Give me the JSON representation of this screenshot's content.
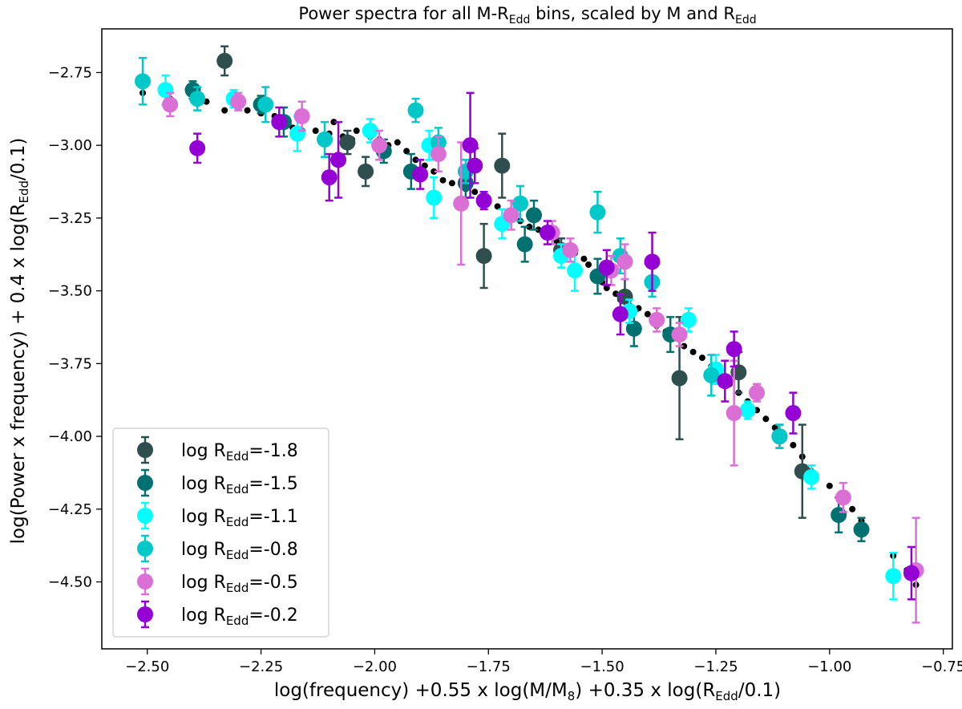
{
  "chart_data": {
    "type": "scatter",
    "title": {
      "main": "Power spectra for all M-R",
      "sub1": "Edd",
      "mid": " bins, scaled by M and R",
      "sub2": "Edd"
    },
    "xlabel": {
      "pre": "log(frequency) +0.55 x log(M/M",
      "sub1": "8",
      "mid": ") +0.35 x log(R",
      "sub2": "Edd",
      "post": "/0.1)"
    },
    "ylabel": {
      "pre": "log(Power x frequency) + 0.4 x log(R",
      "sub": "Edd",
      "post": "/0.1)"
    },
    "xlim": [
      -2.6,
      -0.73
    ],
    "ylim": [
      -4.73,
      -2.6
    ],
    "xticks": [
      -2.5,
      -2.25,
      -2.0,
      -1.75,
      -1.5,
      -1.25,
      -1.0,
      -0.75
    ],
    "xtick_labels": [
      "−2.50",
      "−2.25",
      "−2.00",
      "−1.75",
      "−1.50",
      "−1.25",
      "−1.00",
      "−0.75"
    ],
    "yticks": [
      -2.75,
      -3.0,
      -3.25,
      -3.5,
      -3.75,
      -4.0,
      -4.25,
      -4.5
    ],
    "ytick_labels": [
      "−2.75",
      "−3.00",
      "−3.25",
      "−3.50",
      "−3.75",
      "−4.00",
      "−4.25",
      "−4.50"
    ],
    "legend_position": "lower-left",
    "series": [
      {
        "name": "log REdd=-1.8",
        "label_pre": "log R",
        "label_sub": "Edd",
        "label_post": "=-1.8",
        "color": "#2f4f4f",
        "points": [
          [
            -2.33,
            -2.71,
            0.05
          ],
          [
            -2.06,
            -2.99,
            0.04
          ],
          [
            -2.02,
            -3.09,
            0.05
          ],
          [
            -1.76,
            -3.38,
            0.11
          ],
          [
            -1.72,
            -3.07,
            0.11
          ],
          [
            -1.59,
            -3.36,
            0.04
          ],
          [
            -1.45,
            -3.52,
            0.06
          ],
          [
            -1.33,
            -3.8,
            0.21
          ],
          [
            -1.2,
            -3.78,
            0.07
          ],
          [
            -1.06,
            -4.12,
            0.16
          ]
        ]
      },
      {
        "name": "log REdd=-1.5",
        "label_pre": "log R",
        "label_sub": "Edd",
        "label_post": "=-1.5",
        "color": "#007070",
        "points": [
          [
            -2.4,
            -2.81,
            0.03
          ],
          [
            -2.25,
            -2.86,
            0.03
          ],
          [
            -2.2,
            -2.92,
            0.05
          ],
          [
            -1.98,
            -3.02,
            0.04
          ],
          [
            -1.92,
            -3.09,
            0.06
          ],
          [
            -1.8,
            -3.13,
            0.05
          ],
          [
            -1.65,
            -3.24,
            0.05
          ],
          [
            -1.67,
            -3.34,
            0.06
          ],
          [
            -1.51,
            -3.45,
            0.06
          ],
          [
            -1.43,
            -3.63,
            0.06
          ],
          [
            -1.35,
            -3.65,
            0.06
          ],
          [
            -1.11,
            -4.0,
            0.04
          ],
          [
            -0.98,
            -4.27,
            0.06
          ],
          [
            -0.93,
            -4.32,
            0.04
          ]
        ]
      },
      {
        "name": "log REdd=-1.1",
        "label_pre": "log R",
        "label_sub": "Edd",
        "label_post": "=-1.1",
        "color": "#00ffff",
        "points": [
          [
            -2.46,
            -2.81,
            0.05
          ],
          [
            -2.31,
            -2.84,
            0.03
          ],
          [
            -2.17,
            -2.96,
            0.06
          ],
          [
            -2.01,
            -2.95,
            0.04
          ],
          [
            -1.88,
            -3.0,
            0.05
          ],
          [
            -1.87,
            -3.18,
            0.07
          ],
          [
            -1.72,
            -3.27,
            0.05
          ],
          [
            -1.59,
            -3.38,
            0.04
          ],
          [
            -1.56,
            -3.43,
            0.07
          ],
          [
            -1.44,
            -3.57,
            0.04
          ],
          [
            -1.31,
            -3.6,
            0.04
          ],
          [
            -1.25,
            -3.77,
            0.05
          ],
          [
            -1.18,
            -3.91,
            0.03
          ],
          [
            -1.04,
            -4.14,
            0.04
          ],
          [
            -0.86,
            -4.48,
            0.08
          ]
        ]
      },
      {
        "name": "log REdd=-0.8",
        "label_pre": "log R",
        "label_sub": "Edd",
        "label_post": "=-0.8",
        "color": "#00c8c8",
        "points": [
          [
            -2.51,
            -2.78,
            0.08
          ],
          [
            -2.39,
            -2.84,
            0.04
          ],
          [
            -2.24,
            -2.86,
            0.06
          ],
          [
            -2.11,
            -2.98,
            0.06
          ],
          [
            -1.91,
            -2.88,
            0.04
          ],
          [
            -1.86,
            -2.99,
            0.05
          ],
          [
            -1.8,
            -3.09,
            0.04
          ],
          [
            -1.68,
            -3.2,
            0.06
          ],
          [
            -1.51,
            -3.23,
            0.07
          ],
          [
            -1.46,
            -3.38,
            0.06
          ],
          [
            -1.39,
            -3.47,
            0.05
          ],
          [
            -1.26,
            -3.79,
            0.07
          ],
          [
            -1.11,
            -4.0,
            0.04
          ]
        ]
      },
      {
        "name": "log REdd=-0.5",
        "label_pre": "log R",
        "label_sub": "Edd",
        "label_post": "=-0.5",
        "color": "#da70d6",
        "points": [
          [
            -2.45,
            -2.86,
            0.04
          ],
          [
            -2.3,
            -2.85,
            0.03
          ],
          [
            -2.16,
            -2.9,
            0.05
          ],
          [
            -1.99,
            -3.0,
            0.05
          ],
          [
            -1.86,
            -3.03,
            0.06
          ],
          [
            -1.81,
            -3.2,
            0.21
          ],
          [
            -1.7,
            -3.24,
            0.05
          ],
          [
            -1.61,
            -3.3,
            0.04
          ],
          [
            -1.57,
            -3.36,
            0.04
          ],
          [
            -1.48,
            -3.43,
            0.05
          ],
          [
            -1.45,
            -3.4,
            0.06
          ],
          [
            -1.38,
            -3.6,
            0.04
          ],
          [
            -1.33,
            -3.65,
            0.04
          ],
          [
            -1.21,
            -3.92,
            0.18
          ],
          [
            -1.16,
            -3.85,
            0.03
          ],
          [
            -0.97,
            -4.21,
            0.05
          ],
          [
            -0.81,
            -4.46,
            0.18
          ]
        ]
      },
      {
        "name": "log REdd=-0.2",
        "label_pre": "log R",
        "label_sub": "Edd",
        "label_post": "=-0.2",
        "color": "#9400d3",
        "points": [
          [
            -2.39,
            -3.01,
            0.05
          ],
          [
            -2.21,
            -2.92,
            0.05
          ],
          [
            -2.08,
            -3.05,
            0.13
          ],
          [
            -2.1,
            -3.11,
            0.08
          ],
          [
            -1.9,
            -3.1,
            0.05
          ],
          [
            -1.79,
            -3.0,
            0.18
          ],
          [
            -1.78,
            -3.07,
            0.06
          ],
          [
            -1.76,
            -3.19,
            0.03
          ],
          [
            -1.62,
            -3.3,
            0.04
          ],
          [
            -1.49,
            -3.42,
            0.06
          ],
          [
            -1.46,
            -3.58,
            0.07
          ],
          [
            -1.39,
            -3.4,
            0.1
          ],
          [
            -1.23,
            -3.81,
            0.07
          ],
          [
            -1.21,
            -3.7,
            0.06
          ],
          [
            -1.08,
            -3.92,
            0.07
          ],
          [
            -0.82,
            -4.47,
            0.09
          ]
        ]
      }
    ],
    "model_points": [
      [
        -2.51,
        -2.82
      ],
      [
        -2.46,
        -2.82
      ],
      [
        -2.45,
        -2.84
      ],
      [
        -2.39,
        -2.83
      ],
      [
        -2.39,
        -2.85
      ],
      [
        -2.37,
        -2.85
      ],
      [
        -2.33,
        -2.88
      ],
      [
        -2.3,
        -2.87
      ],
      [
        -2.28,
        -2.88
      ],
      [
        -2.25,
        -2.89
      ],
      [
        -2.22,
        -2.9
      ],
      [
        -2.21,
        -2.91
      ],
      [
        -2.19,
        -2.93
      ],
      [
        -2.18,
        -2.94
      ],
      [
        -2.16,
        -2.95
      ],
      [
        -2.13,
        -2.95
      ],
      [
        -2.1,
        -2.96
      ],
      [
        -2.09,
        -2.92
      ],
      [
        -2.07,
        -2.97
      ],
      [
        -2.05,
        -2.98
      ],
      [
        -2.04,
        -2.95
      ],
      [
        -2.01,
        -2.97
      ],
      [
        -1.99,
        -2.98
      ],
      [
        -1.97,
        -3.0
      ],
      [
        -1.95,
        -2.99
      ],
      [
        -1.93,
        -3.02
      ],
      [
        -1.91,
        -3.05
      ],
      [
        -1.89,
        -3.07
      ],
      [
        -1.87,
        -3.09
      ],
      [
        -1.85,
        -3.12
      ],
      [
        -1.83,
        -3.13
      ],
      [
        -1.8,
        -3.15
      ],
      [
        -1.78,
        -3.16
      ],
      [
        -1.76,
        -3.19
      ],
      [
        -1.73,
        -3.21
      ],
      [
        -1.7,
        -3.24
      ],
      [
        -1.68,
        -3.26
      ],
      [
        -1.66,
        -3.28
      ],
      [
        -1.64,
        -3.29
      ],
      [
        -1.62,
        -3.31
      ],
      [
        -1.6,
        -3.33
      ],
      [
        -1.58,
        -3.35
      ],
      [
        -1.56,
        -3.37
      ],
      [
        -1.54,
        -3.39
      ],
      [
        -1.53,
        -3.41
      ],
      [
        -1.51,
        -3.44
      ],
      [
        -1.5,
        -3.47
      ],
      [
        -1.49,
        -3.49
      ],
      [
        -1.47,
        -3.51
      ],
      [
        -1.46,
        -3.53
      ],
      [
        -1.44,
        -3.55
      ],
      [
        -1.42,
        -3.56
      ],
      [
        -1.4,
        -3.58
      ],
      [
        -1.38,
        -3.62
      ],
      [
        -1.36,
        -3.64
      ],
      [
        -1.34,
        -3.66
      ],
      [
        -1.32,
        -3.69
      ],
      [
        -1.3,
        -3.71
      ],
      [
        -1.28,
        -3.73
      ],
      [
        -1.26,
        -3.76
      ],
      [
        -1.24,
        -3.79
      ],
      [
        -1.22,
        -3.82
      ],
      [
        -1.2,
        -3.85
      ],
      [
        -1.18,
        -3.88
      ],
      [
        -1.16,
        -3.91
      ],
      [
        -1.14,
        -3.94
      ],
      [
        -1.12,
        -3.97
      ],
      [
        -1.1,
        -4.0
      ],
      [
        -1.08,
        -4.03
      ],
      [
        -1.06,
        -4.07
      ],
      [
        -1.04,
        -4.12
      ],
      [
        -1.0,
        -4.17
      ],
      [
        -0.97,
        -4.21
      ],
      [
        -0.95,
        -4.25
      ],
      [
        -0.93,
        -4.29
      ],
      [
        -0.86,
        -4.41
      ],
      [
        -0.83,
        -4.46
      ],
      [
        -0.81,
        -4.51
      ]
    ]
  }
}
